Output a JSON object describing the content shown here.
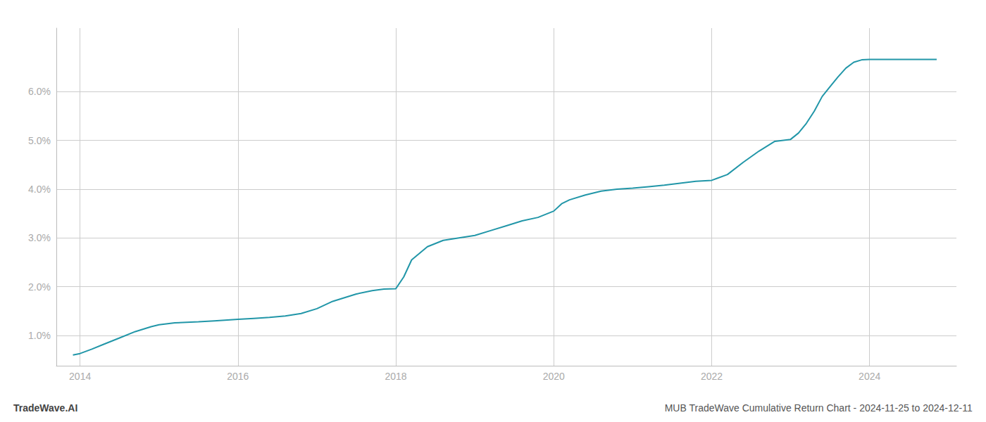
{
  "chart_data": {
    "type": "line",
    "title": "MUB TradeWave Cumulative Return Chart - 2024-11-25 to 2024-12-11",
    "annotations": [
      "TradeWave.AI"
    ],
    "x": [
      2013.91,
      2014.0,
      2014.15,
      2014.3,
      2014.5,
      2014.7,
      2014.9,
      2015.0,
      2015.2,
      2015.5,
      2015.7,
      2015.9,
      2016.0,
      2016.2,
      2016.4,
      2016.6,
      2016.8,
      2017.0,
      2017.2,
      2017.5,
      2017.7,
      2017.85,
      2018.0,
      2018.1,
      2018.2,
      2018.4,
      2018.6,
      2018.8,
      2019.0,
      2019.2,
      2019.4,
      2019.6,
      2019.8,
      2020.0,
      2020.1,
      2020.2,
      2020.4,
      2020.6,
      2020.8,
      2021.0,
      2021.2,
      2021.4,
      2021.6,
      2021.8,
      2022.0,
      2022.2,
      2022.4,
      2022.6,
      2022.8,
      2023.0,
      2023.1,
      2023.2,
      2023.3,
      2023.4,
      2023.5,
      2023.6,
      2023.7,
      2023.8,
      2023.9,
      2024.0,
      2024.2,
      2024.4,
      2024.6,
      2024.85
    ],
    "values": [
      0.6,
      0.63,
      0.72,
      0.82,
      0.95,
      1.08,
      1.18,
      1.22,
      1.26,
      1.28,
      1.3,
      1.32,
      1.33,
      1.35,
      1.37,
      1.4,
      1.45,
      1.55,
      1.7,
      1.85,
      1.92,
      1.95,
      1.96,
      2.2,
      2.55,
      2.82,
      2.95,
      3.0,
      3.05,
      3.15,
      3.25,
      3.35,
      3.42,
      3.55,
      3.7,
      3.78,
      3.88,
      3.96,
      4.0,
      4.02,
      4.05,
      4.08,
      4.12,
      4.16,
      4.18,
      4.3,
      4.55,
      4.78,
      4.98,
      5.02,
      5.15,
      5.35,
      5.6,
      5.9,
      6.1,
      6.3,
      6.48,
      6.6,
      6.65,
      6.66,
      6.66,
      6.66,
      6.66,
      6.66
    ],
    "color": "#2196a8",
    "xlim": [
      2013.7,
      2025.1
    ],
    "ylim": [
      0.38,
      7.3
    ],
    "xticks": [
      2014,
      2016,
      2018,
      2020,
      2022,
      2024
    ],
    "yticks": [
      {
        "value": 1.0,
        "label": "1.0%"
      },
      {
        "value": 2.0,
        "label": "2.0%"
      },
      {
        "value": 3.0,
        "label": "3.0%"
      },
      {
        "value": 4.0,
        "label": "4.0%"
      },
      {
        "value": 5.0,
        "label": "5.0%"
      },
      {
        "value": 6.0,
        "label": "6.0%"
      }
    ],
    "grid": true
  }
}
